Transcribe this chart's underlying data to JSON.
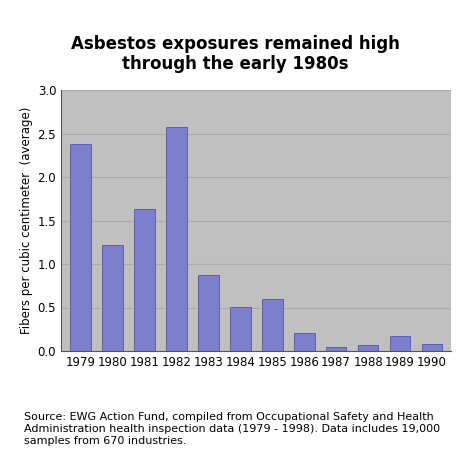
{
  "years": [
    "1979",
    "1980",
    "1981",
    "1982",
    "1983",
    "1984",
    "1985",
    "1986",
    "1987",
    "1988",
    "1989",
    "1990"
  ],
  "values": [
    2.38,
    1.22,
    1.63,
    2.57,
    0.87,
    0.51,
    0.6,
    0.21,
    0.05,
    0.07,
    0.17,
    0.08
  ],
  "bar_color": "#7b7fcc",
  "bar_edge_color": "#5555aa",
  "title_line1": "Asbestos exposures remained high",
  "title_line2": "through the early 1980s",
  "ylabel": "Fibers per cubic centimeter  (average)",
  "ylim": [
    0,
    3
  ],
  "yticks": [
    0,
    0.5,
    1,
    1.5,
    2,
    2.5,
    3
  ],
  "plot_bg_color": "#c0c0c0",
  "grid_color": "#aaaaaa",
  "source_text": "Source: EWG Action Fund, compiled from Occupational Safety and Health\nAdministration health inspection data (1979 - 1998). Data includes 19,000\nsamples from 670 industries.",
  "title_fontsize": 12,
  "ylabel_fontsize": 8.5,
  "tick_fontsize": 8.5,
  "source_fontsize": 8
}
